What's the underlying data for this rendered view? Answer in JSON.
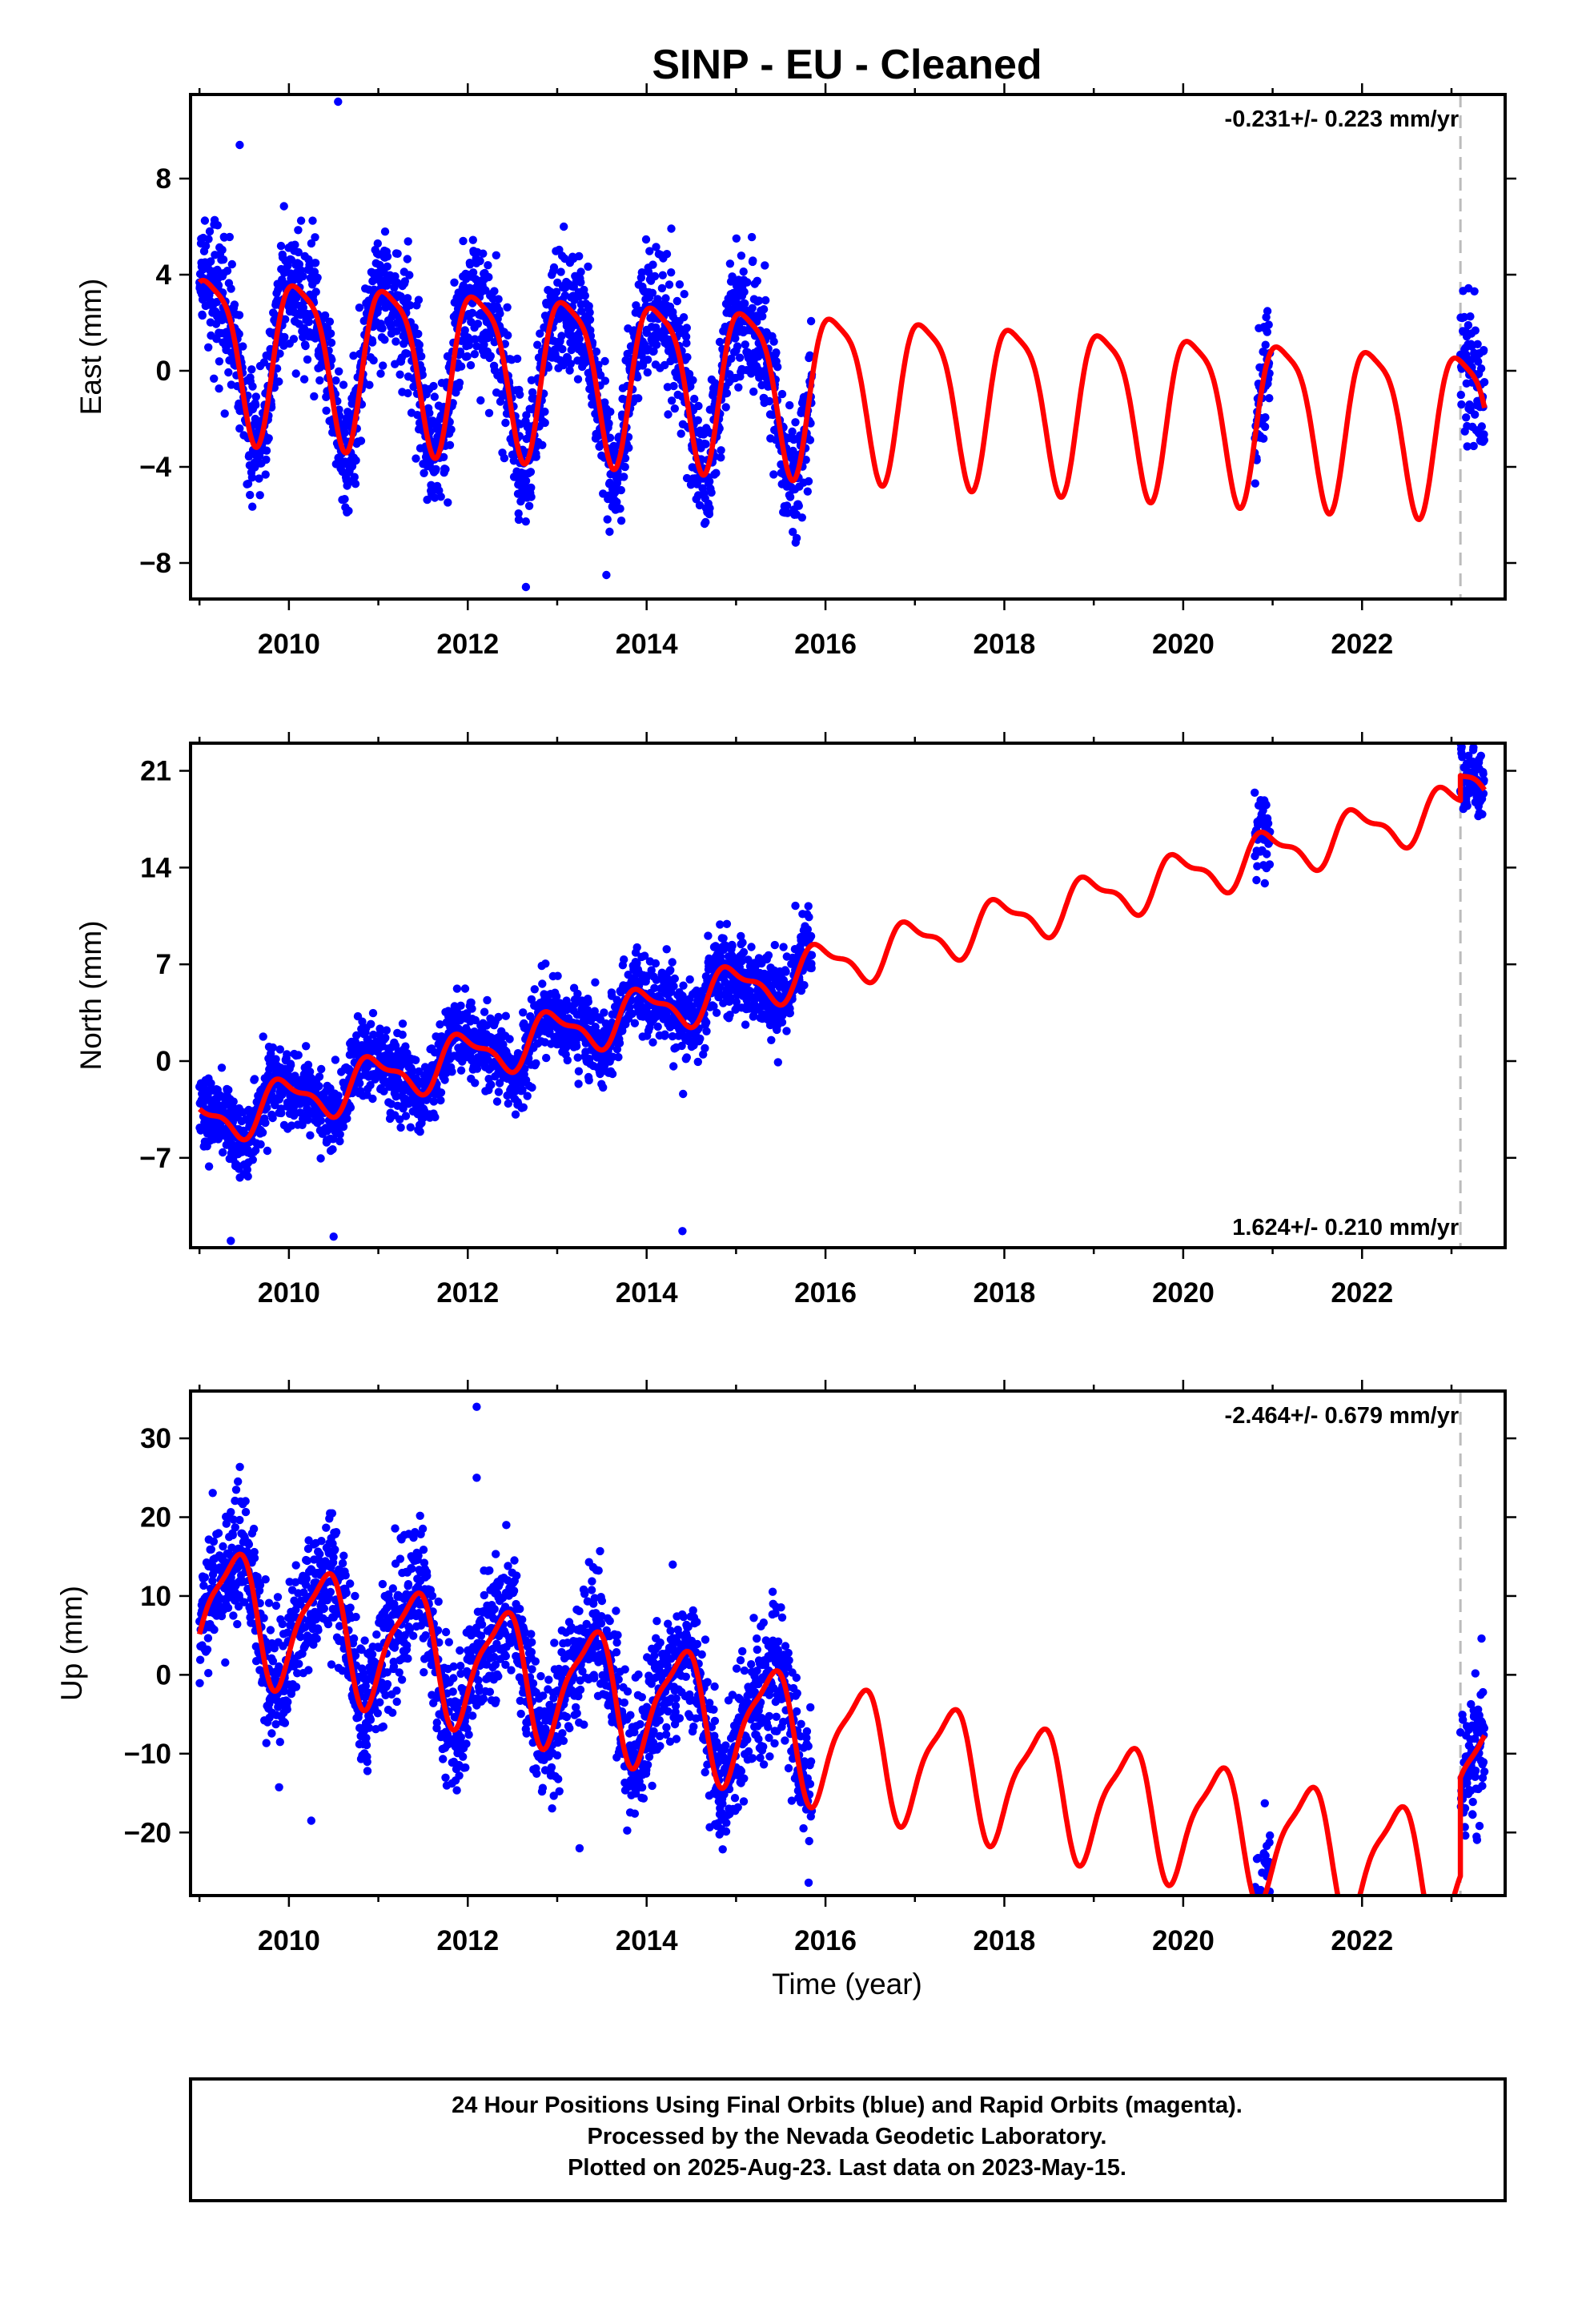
{
  "page": {
    "title": "SINP  - EU - Cleaned",
    "xlabel": "Time (year)"
  },
  "colors": {
    "final_orbits": "#0000ff",
    "model_fit": "#ff0000",
    "offset_line": "#bbbbbb",
    "axes": "#000000"
  },
  "chart_data": [
    {
      "type": "scatter",
      "panel": "east",
      "ylabel": "East (mm)",
      "rate_label": "-0.231+/- 0.223 mm/yr",
      "rate_position": "top-right",
      "xlim": [
        2008.9,
        2023.6
      ],
      "ylim": [
        -9.5,
        11.5
      ],
      "xticks": [
        2010,
        2012,
        2014,
        2016,
        2018,
        2020,
        2022
      ],
      "xtick_labels": [
        "2010",
        "2012",
        "2014",
        "2016",
        "2018",
        "2020",
        "2022"
      ],
      "yticks": [
        -8,
        -4,
        0,
        4,
        8
      ],
      "ytick_labels": [
        "−8",
        "−4",
        "0",
        "4",
        "8"
      ],
      "offset_epoch": 2023.1,
      "segments": [
        [
          2009.0,
          2015.85
        ],
        [
          2020.8,
          2020.97
        ],
        [
          2023.1,
          2023.37
        ]
      ],
      "model": {
        "offset": 1.03,
        "rate": -0.231,
        "amp_annual": 3.3,
        "phase_annual": 0.12,
        "amp_semi": 0.8,
        "phase_semi": 0.4,
        "step": 0.0
      },
      "noise": 1.3,
      "outliers": [
        [
          2010.55,
          11.2
        ],
        [
          2012.65,
          -9.0
        ],
        [
          2013.55,
          -8.5
        ],
        [
          2009.45,
          9.4
        ]
      ]
    },
    {
      "type": "scatter",
      "panel": "north",
      "ylabel": "North (mm)",
      "rate_label": "1.624+/- 0.210 mm/yr",
      "rate_position": "bottom-right",
      "xlim": [
        2008.9,
        2023.6
      ],
      "ylim": [
        -13.5,
        23.0
      ],
      "xticks": [
        2010,
        2012,
        2014,
        2016,
        2018,
        2020,
        2022
      ],
      "xtick_labels": [
        "2010",
        "2012",
        "2014",
        "2016",
        "2018",
        "2020",
        "2022"
      ],
      "yticks": [
        -7,
        0,
        7,
        14,
        21
      ],
      "ytick_labels": [
        "−7",
        "0",
        "7",
        "14",
        "21"
      ],
      "offset_epoch": 2023.1,
      "segments": [
        [
          2009.0,
          2015.85
        ],
        [
          2020.8,
          2020.97
        ],
        [
          2023.1,
          2023.37
        ]
      ],
      "model": {
        "offset": -4.5,
        "rate": 1.624,
        "amp_annual": 1.6,
        "phase_annual": 0.95,
        "amp_semi": 0.6,
        "phase_semi": 0.3,
        "step": 1.8
      },
      "noise": 1.4,
      "outliers": [
        [
          2009.35,
          -13.0
        ],
        [
          2010.5,
          -12.7
        ],
        [
          2014.4,
          -12.3
        ]
      ]
    },
    {
      "type": "scatter",
      "panel": "up",
      "ylabel": "Up (mm)",
      "rate_label": "-2.464+/- 0.679 mm/yr",
      "rate_position": "top-right",
      "xlim": [
        2008.9,
        2023.6
      ],
      "ylim": [
        -28.0,
        36.0
      ],
      "xticks": [
        2010,
        2012,
        2014,
        2016,
        2018,
        2020,
        2022
      ],
      "xtick_labels": [
        "2010",
        "2012",
        "2014",
        "2016",
        "2018",
        "2020",
        "2022"
      ],
      "yticks": [
        -20,
        -10,
        0,
        10,
        20,
        30
      ],
      "ytick_labels": [
        "−20",
        "−10",
        "0",
        "10",
        "20",
        "30"
      ],
      "offset_epoch": 2023.1,
      "segments": [
        [
          2009.0,
          2015.85
        ],
        [
          2020.8,
          2020.97
        ],
        [
          2023.1,
          2023.37
        ]
      ],
      "model": {
        "offset": 9.0,
        "rate": -2.464,
        "amp_annual": 7.5,
        "phase_annual": 0.38,
        "amp_semi": 2.0,
        "phase_semi": 0.55,
        "step": 12.5
      },
      "noise": 4.2,
      "outliers": [
        [
          2012.1,
          34.0
        ],
        [
          2012.1,
          25.0
        ],
        [
          2010.25,
          -18.5
        ],
        [
          2013.25,
          -22.0
        ]
      ]
    }
  ],
  "footer": {
    "line1": "24 Hour Positions Using Final Orbits (blue) and Rapid Orbits (magenta).",
    "line2": "Processed by the Nevada Geodetic Laboratory.",
    "line3": "Plotted on 2025-Aug-23. Last data on 2023-May-15."
  }
}
